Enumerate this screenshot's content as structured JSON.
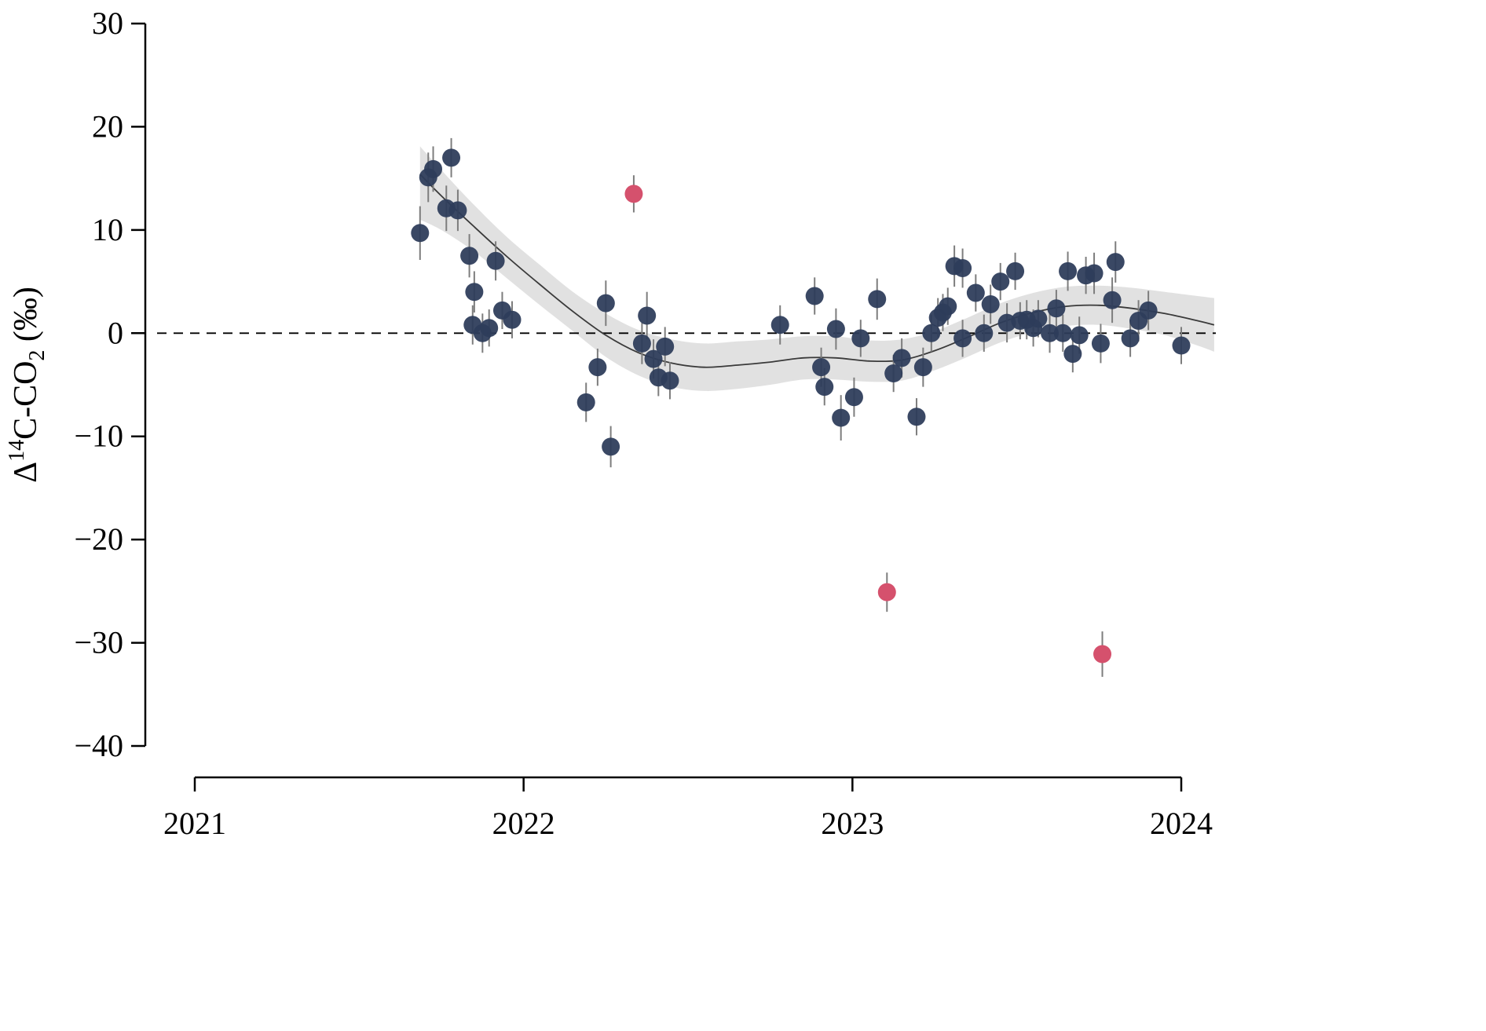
{
  "figure": {
    "background": "#ffffff",
    "y_axis_title": "Δ14C-CO2 (‰)",
    "y_axis_title_parts": [
      {
        "text": "Δ",
        "style": "normal"
      },
      {
        "text": "14",
        "style": "super"
      },
      {
        "text": "C-CO",
        "style": "normal"
      },
      {
        "text": "2",
        "style": "sub"
      },
      {
        "text": " (‰)",
        "style": "normal"
      }
    ]
  },
  "chart_data": {
    "type": "scatter",
    "title": "",
    "xlabel": "",
    "ylabel": "Δ14C-CO2 (‰)",
    "xlim": [
      2020.85,
      2024.1
    ],
    "ylim": [
      -40,
      30
    ],
    "grid": false,
    "legend": "none",
    "x_ticks": [
      2021,
      2022,
      2023,
      2024
    ],
    "x_tick_labels": [
      "2021",
      "2022",
      "2023",
      "2024"
    ],
    "y_ticks": [
      30,
      20,
      10,
      0,
      -10,
      -20,
      -30,
      -40
    ],
    "y_tick_labels": [
      "30",
      "20",
      "10",
      "0",
      "−10",
      "−20",
      "−30",
      "−40"
    ],
    "zero_line": {
      "y": 0,
      "style": "dashed"
    },
    "colors": {
      "points": "#2e3d5a",
      "outliers": "#d5516d",
      "band": "#d9d9d9",
      "fit_line": "#3a3a3a",
      "error_bar": "#7d7d7d",
      "axis": "#000000"
    },
    "series": [
      {
        "name": "observations",
        "marker": "circle",
        "color_key": "points",
        "opacity": 0.94,
        "point_name": "data-point",
        "points": [
          [
            2021.685,
            9.7,
            2.6
          ],
          [
            2021.71,
            15.1,
            2.4
          ],
          [
            2021.725,
            15.9,
            2.2
          ],
          [
            2021.78,
            17.0,
            1.9
          ],
          [
            2021.765,
            12.1,
            2.2
          ],
          [
            2021.8,
            11.9,
            2.0
          ],
          [
            2021.835,
            7.5,
            2.1
          ],
          [
            2021.85,
            4.0,
            2.0
          ],
          [
            2021.845,
            0.8,
            1.9
          ],
          [
            2021.875,
            0.0,
            1.9
          ],
          [
            2021.895,
            0.5,
            1.8
          ],
          [
            2021.915,
            7.0,
            1.9
          ],
          [
            2021.935,
            2.2,
            1.8
          ],
          [
            2021.965,
            1.3,
            1.8
          ],
          [
            2022.19,
            -6.7,
            1.9
          ],
          [
            2022.225,
            -3.3,
            1.8
          ],
          [
            2022.25,
            2.9,
            2.2
          ],
          [
            2022.265,
            -11.0,
            2.0
          ],
          [
            2022.36,
            -1.0,
            2.0
          ],
          [
            2022.375,
            1.7,
            2.3
          ],
          [
            2022.395,
            -2.5,
            1.9
          ],
          [
            2022.41,
            -4.3,
            1.8
          ],
          [
            2022.43,
            -1.3,
            1.9
          ],
          [
            2022.445,
            -4.6,
            1.8
          ],
          [
            2022.78,
            0.8,
            1.9
          ],
          [
            2022.885,
            3.6,
            1.8
          ],
          [
            2022.905,
            -3.3,
            1.9
          ],
          [
            2022.915,
            -5.2,
            1.8
          ],
          [
            2022.95,
            0.4,
            2.0
          ],
          [
            2022.965,
            -8.2,
            2.2
          ],
          [
            2023.005,
            -6.2,
            1.9
          ],
          [
            2023.025,
            -0.5,
            1.8
          ],
          [
            2023.075,
            3.3,
            2.0
          ],
          [
            2023.125,
            -3.9,
            1.8
          ],
          [
            2023.15,
            -2.4,
            1.9
          ],
          [
            2023.195,
            -8.1,
            1.8
          ],
          [
            2023.215,
            -3.3,
            1.9
          ],
          [
            2023.24,
            0.0,
            1.8
          ],
          [
            2023.26,
            1.5,
            1.9
          ],
          [
            2023.275,
            2.0,
            1.8
          ],
          [
            2023.29,
            2.6,
            1.8
          ],
          [
            2023.31,
            6.5,
            2.0
          ],
          [
            2023.335,
            6.3,
            1.9
          ],
          [
            2023.335,
            -0.5,
            1.8
          ],
          [
            2023.375,
            3.9,
            1.8
          ],
          [
            2023.4,
            0.0,
            1.8
          ],
          [
            2023.42,
            2.8,
            1.9
          ],
          [
            2023.45,
            5.0,
            1.8
          ],
          [
            2023.47,
            1.0,
            1.9
          ],
          [
            2023.495,
            6.0,
            1.8
          ],
          [
            2023.51,
            1.2,
            1.8
          ],
          [
            2023.53,
            1.3,
            1.9
          ],
          [
            2023.55,
            0.5,
            1.8
          ],
          [
            2023.565,
            1.4,
            1.8
          ],
          [
            2023.6,
            0.0,
            1.9
          ],
          [
            2023.62,
            2.4,
            1.8
          ],
          [
            2023.64,
            0.0,
            1.8
          ],
          [
            2023.655,
            6.0,
            1.9
          ],
          [
            2023.67,
            -2.0,
            1.8
          ],
          [
            2023.69,
            -0.2,
            1.8
          ],
          [
            2023.71,
            5.6,
            1.8
          ],
          [
            2023.735,
            5.8,
            2.0
          ],
          [
            2023.755,
            -1.0,
            1.9
          ],
          [
            2023.79,
            3.2,
            2.2
          ],
          [
            2023.8,
            6.9,
            2.0
          ],
          [
            2023.845,
            -0.5,
            1.8
          ],
          [
            2023.87,
            1.2,
            2.0
          ],
          [
            2023.9,
            2.2,
            1.9
          ],
          [
            2024.0,
            -1.2,
            1.8
          ]
        ]
      },
      {
        "name": "outliers",
        "marker": "circle",
        "color_key": "outliers",
        "opacity": 1,
        "point_name": "outlier-point",
        "points": [
          [
            2022.335,
            13.5,
            1.8
          ],
          [
            2023.105,
            -25.1,
            1.9
          ],
          [
            2023.76,
            -31.1,
            2.2
          ]
        ]
      }
    ],
    "fit": {
      "name": "smooth-fit-with-95ci",
      "x": [
        2021.685,
        2021.75,
        2021.85,
        2021.95,
        2022.05,
        2022.15,
        2022.25,
        2022.35,
        2022.45,
        2022.55,
        2022.65,
        2022.75,
        2022.85,
        2022.95,
        2023.05,
        2023.15,
        2023.25,
        2023.35,
        2023.45,
        2023.55,
        2023.65,
        2023.75,
        2023.85,
        2023.95,
        2024.05,
        2024.1
      ],
      "y": [
        15.4,
        13.3,
        10.3,
        7.4,
        4.7,
        2.1,
        -0.2,
        -1.9,
        -2.9,
        -3.3,
        -3.1,
        -2.8,
        -2.4,
        -2.4,
        -2.7,
        -2.6,
        -1.7,
        -0.4,
        1.0,
        2.0,
        2.6,
        2.7,
        2.4,
        1.9,
        1.2,
        0.8
      ],
      "hi": [
        18.1,
        15.8,
        12.4,
        9.3,
        6.6,
        4.0,
        1.9,
        0.3,
        -0.6,
        -1.0,
        -0.8,
        -0.6,
        -0.3,
        -0.3,
        -0.7,
        -0.6,
        0.2,
        1.5,
        2.9,
        3.9,
        4.5,
        4.6,
        4.4,
        4.0,
        3.6,
        3.4
      ],
      "lo": [
        11.0,
        10.0,
        7.9,
        5.3,
        2.7,
        0.2,
        -2.3,
        -4.1,
        -5.2,
        -5.6,
        -5.4,
        -5.0,
        -4.5,
        -4.5,
        -4.7,
        -4.6,
        -3.6,
        -2.3,
        -0.9,
        0.1,
        0.7,
        0.8,
        0.4,
        -0.2,
        -1.2,
        -1.8
      ]
    }
  }
}
